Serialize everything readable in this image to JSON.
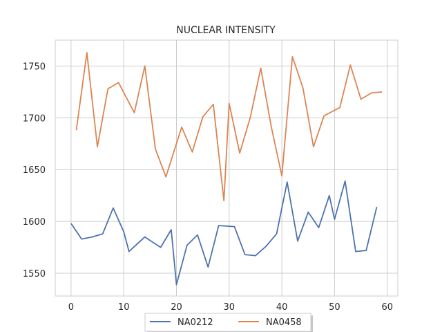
{
  "chart_data": {
    "type": "line",
    "title": "NUCLEAR INTENSITY",
    "xlabel": "",
    "ylabel": "",
    "xlim": [
      -3,
      62
    ],
    "ylim": [
      1528,
      1775
    ],
    "xticks": [
      0,
      10,
      20,
      30,
      40,
      50,
      60
    ],
    "yticks": [
      1550,
      1600,
      1650,
      1700,
      1750
    ],
    "grid": true,
    "legend_position": "bottom-center",
    "series": [
      {
        "name": "NA0212",
        "color": "#4c72b0",
        "x": [
          0,
          2,
          4,
          6,
          8,
          10,
          11,
          14,
          17,
          19,
          20,
          22,
          24,
          26,
          28,
          31,
          33,
          35,
          37,
          39,
          41,
          43,
          45,
          47,
          49,
          50,
          52,
          54,
          56,
          58
        ],
        "y": [
          1598,
          1583,
          1585,
          1588,
          1613,
          1590,
          1571,
          1585,
          1575,
          1592,
          1539,
          1577,
          1587,
          1556,
          1596,
          1595,
          1568,
          1567,
          1576,
          1588,
          1638,
          1581,
          1609,
          1594,
          1625,
          1602,
          1639,
          1571,
          1572,
          1614
        ]
      },
      {
        "name": "NA0458",
        "color": "#dd8452",
        "x": [
          1,
          3,
          5,
          7,
          9,
          12,
          14,
          16,
          18,
          21,
          23,
          25,
          27,
          29,
          30,
          32,
          34,
          36,
          38,
          40,
          42,
          44,
          46,
          48,
          51,
          53,
          55,
          57,
          59
        ],
        "y": [
          1688,
          1763,
          1672,
          1728,
          1734,
          1705,
          1750,
          1670,
          1643,
          1691,
          1667,
          1701,
          1713,
          1620,
          1714,
          1666,
          1700,
          1748,
          1691,
          1644,
          1759,
          1729,
          1672,
          1702,
          1710,
          1751,
          1718,
          1724,
          1725
        ]
      }
    ]
  }
}
